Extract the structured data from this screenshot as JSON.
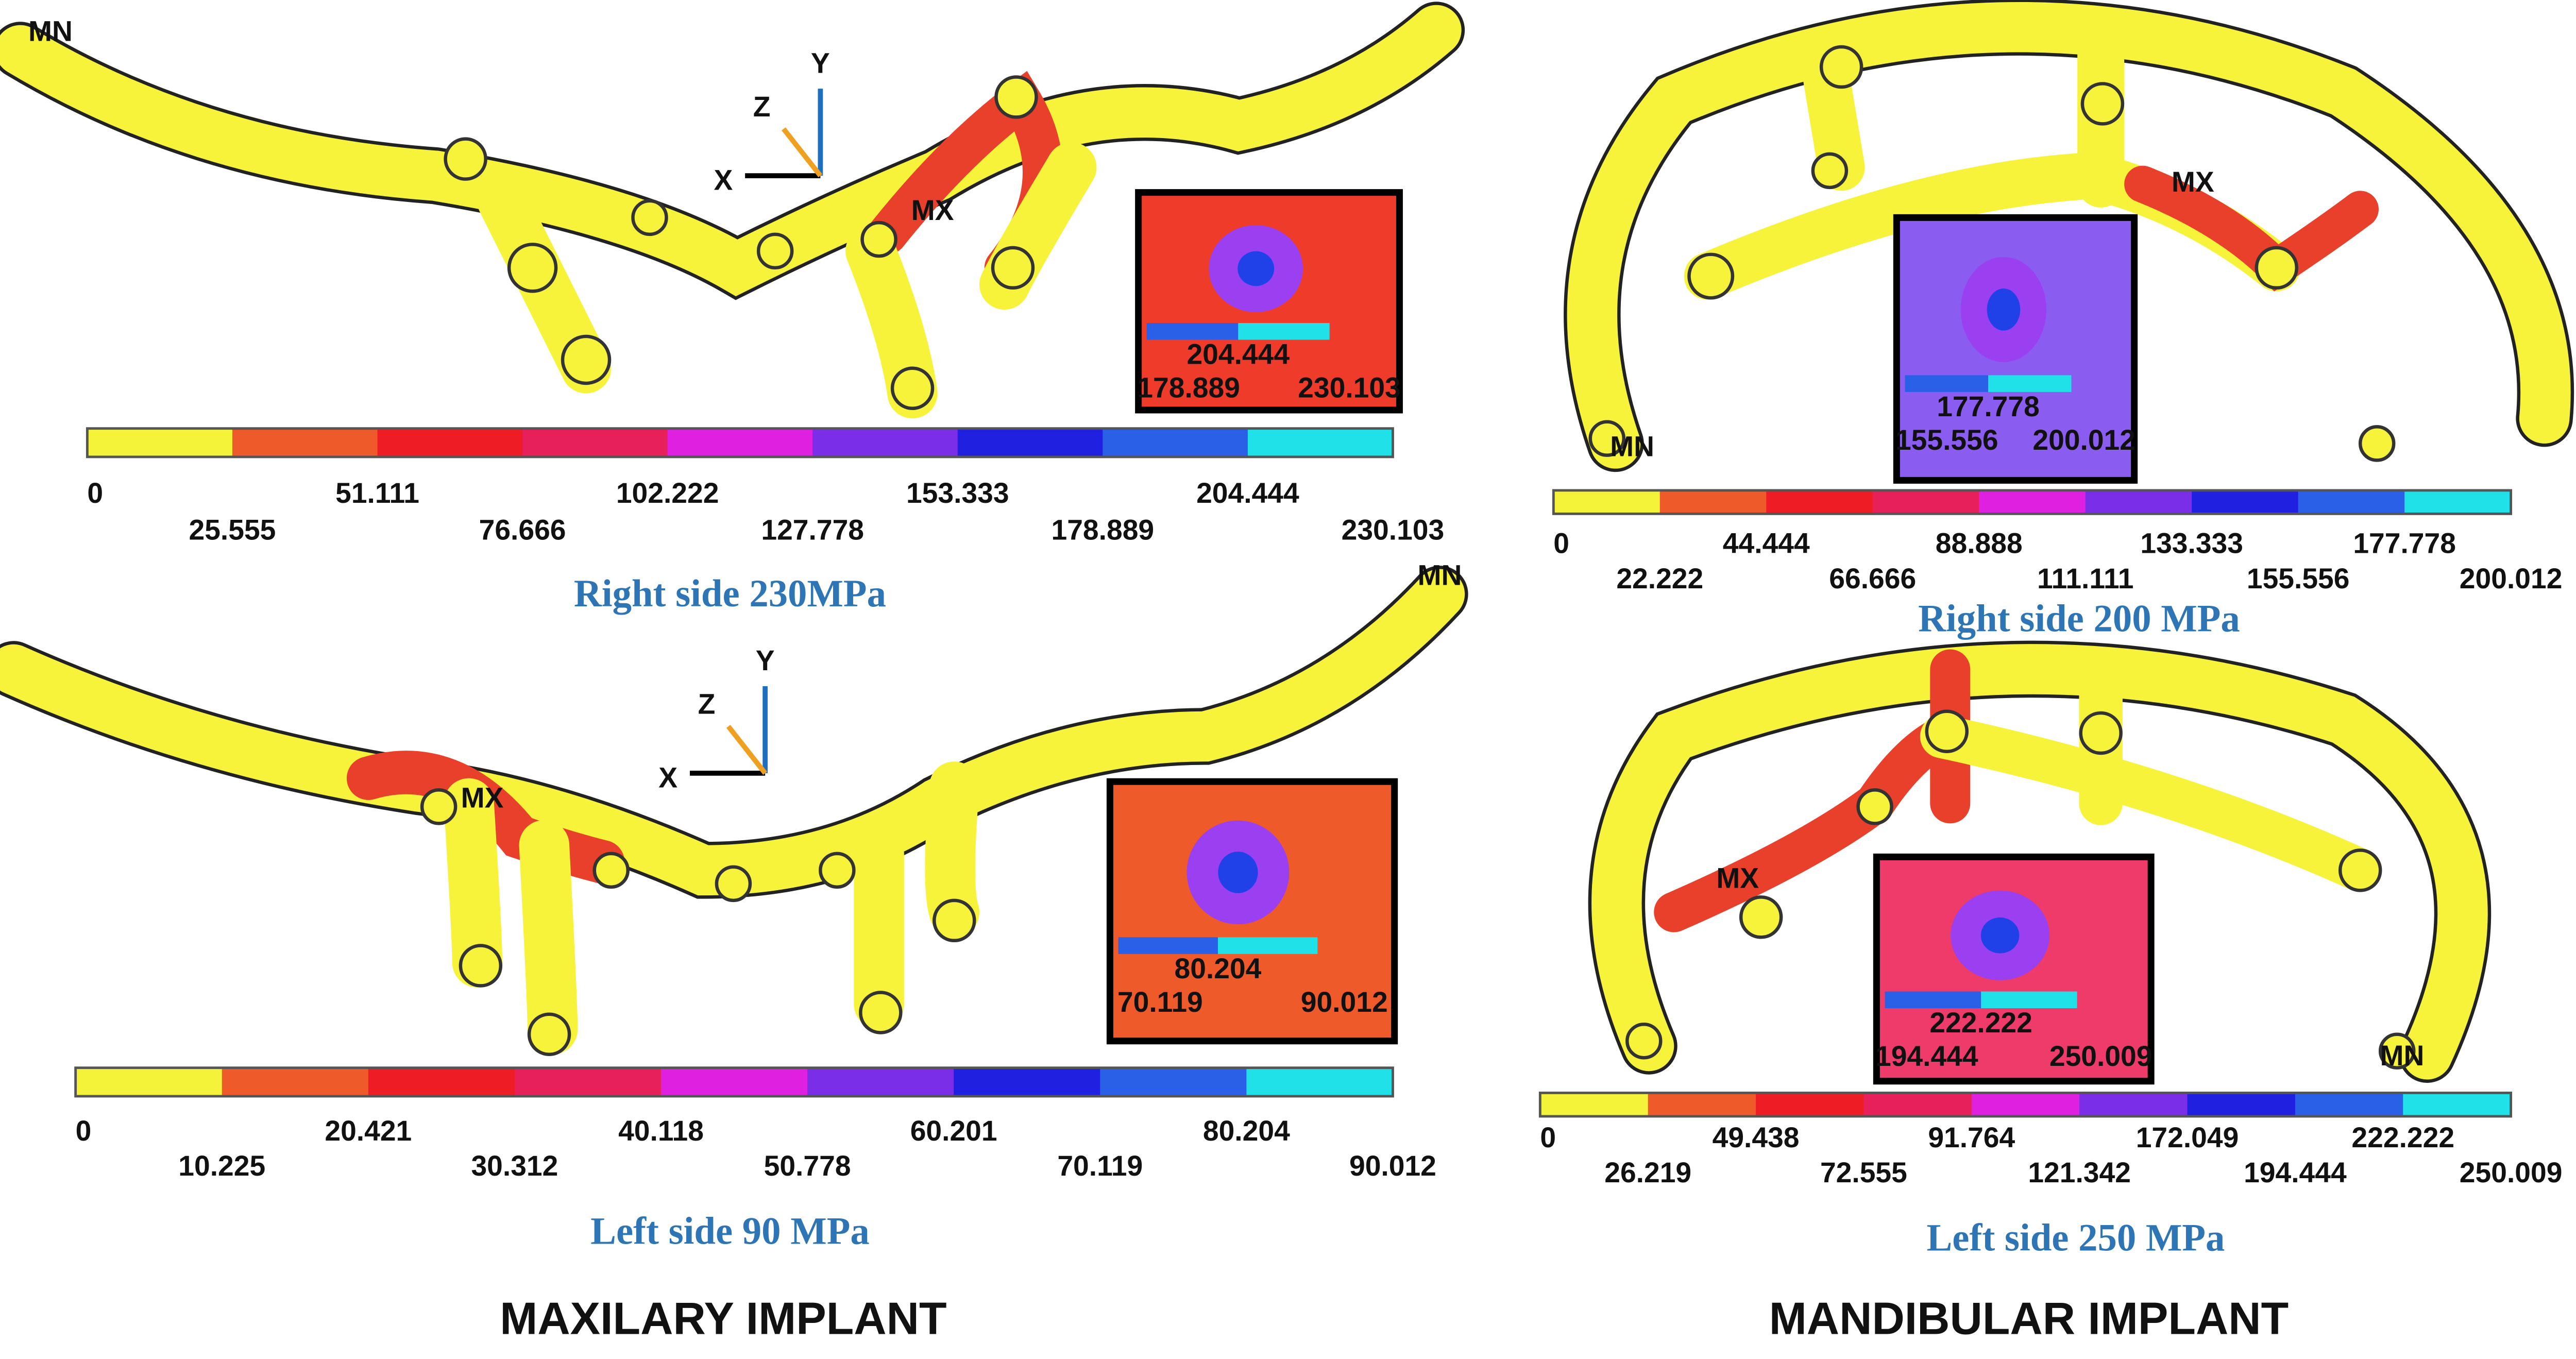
{
  "headings": [
    "MAXILARY IMPLANT",
    "MANDIBULAR IMPLANT"
  ],
  "panels": [
    {
      "title": "Right side 230MPa",
      "mn": "MN",
      "mx": "MX",
      "axes": {
        "x": "X",
        "y": "Y",
        "z": "Z"
      },
      "scale_upper": [
        "0",
        "51.111",
        "102.222",
        "153.333",
        "204.444"
      ],
      "scale_lower": [
        "25.555",
        "76.666",
        "127.778",
        "178.889",
        "230.103"
      ],
      "inset": {
        "center": "204.444",
        "left": "178.889",
        "right": "230.103"
      }
    },
    {
      "title": "Right side 200 MPa",
      "mn": "MN",
      "mx": "MX",
      "scale_upper": [
        "0",
        "44.444",
        "88.888",
        "133.333",
        "177.778"
      ],
      "scale_lower": [
        "22.222",
        "66.666",
        "111.111",
        "155.556",
        "200.012"
      ],
      "inset": {
        "center": "177.778",
        "left": "155.556",
        "right": "200.012"
      }
    },
    {
      "title": "Left side 90 MPa",
      "mn": "MN",
      "mx": "MX",
      "axes": {
        "x": "X",
        "y": "Y",
        "z": "Z"
      },
      "scale_upper": [
        "0",
        "20.421",
        "40.118",
        "60.201",
        "80.204"
      ],
      "scale_lower": [
        "10.225",
        "30.312",
        "50.778",
        "70.119",
        "90.012"
      ],
      "inset": {
        "center": "80.204",
        "left": "70.119",
        "right": "90.012"
      }
    },
    {
      "title": "Left side 250 MPa",
      "mn": "MN",
      "mx": "MX",
      "scale_upper": [
        "0",
        "49.438",
        "91.764",
        "172.049",
        "222.222"
      ],
      "scale_lower": [
        "26.219",
        "72.555",
        "121.342",
        "194.444",
        "250.009"
      ],
      "inset": {
        "center": "222.222",
        "left": "194.444",
        "right": "250.009"
      }
    }
  ]
}
